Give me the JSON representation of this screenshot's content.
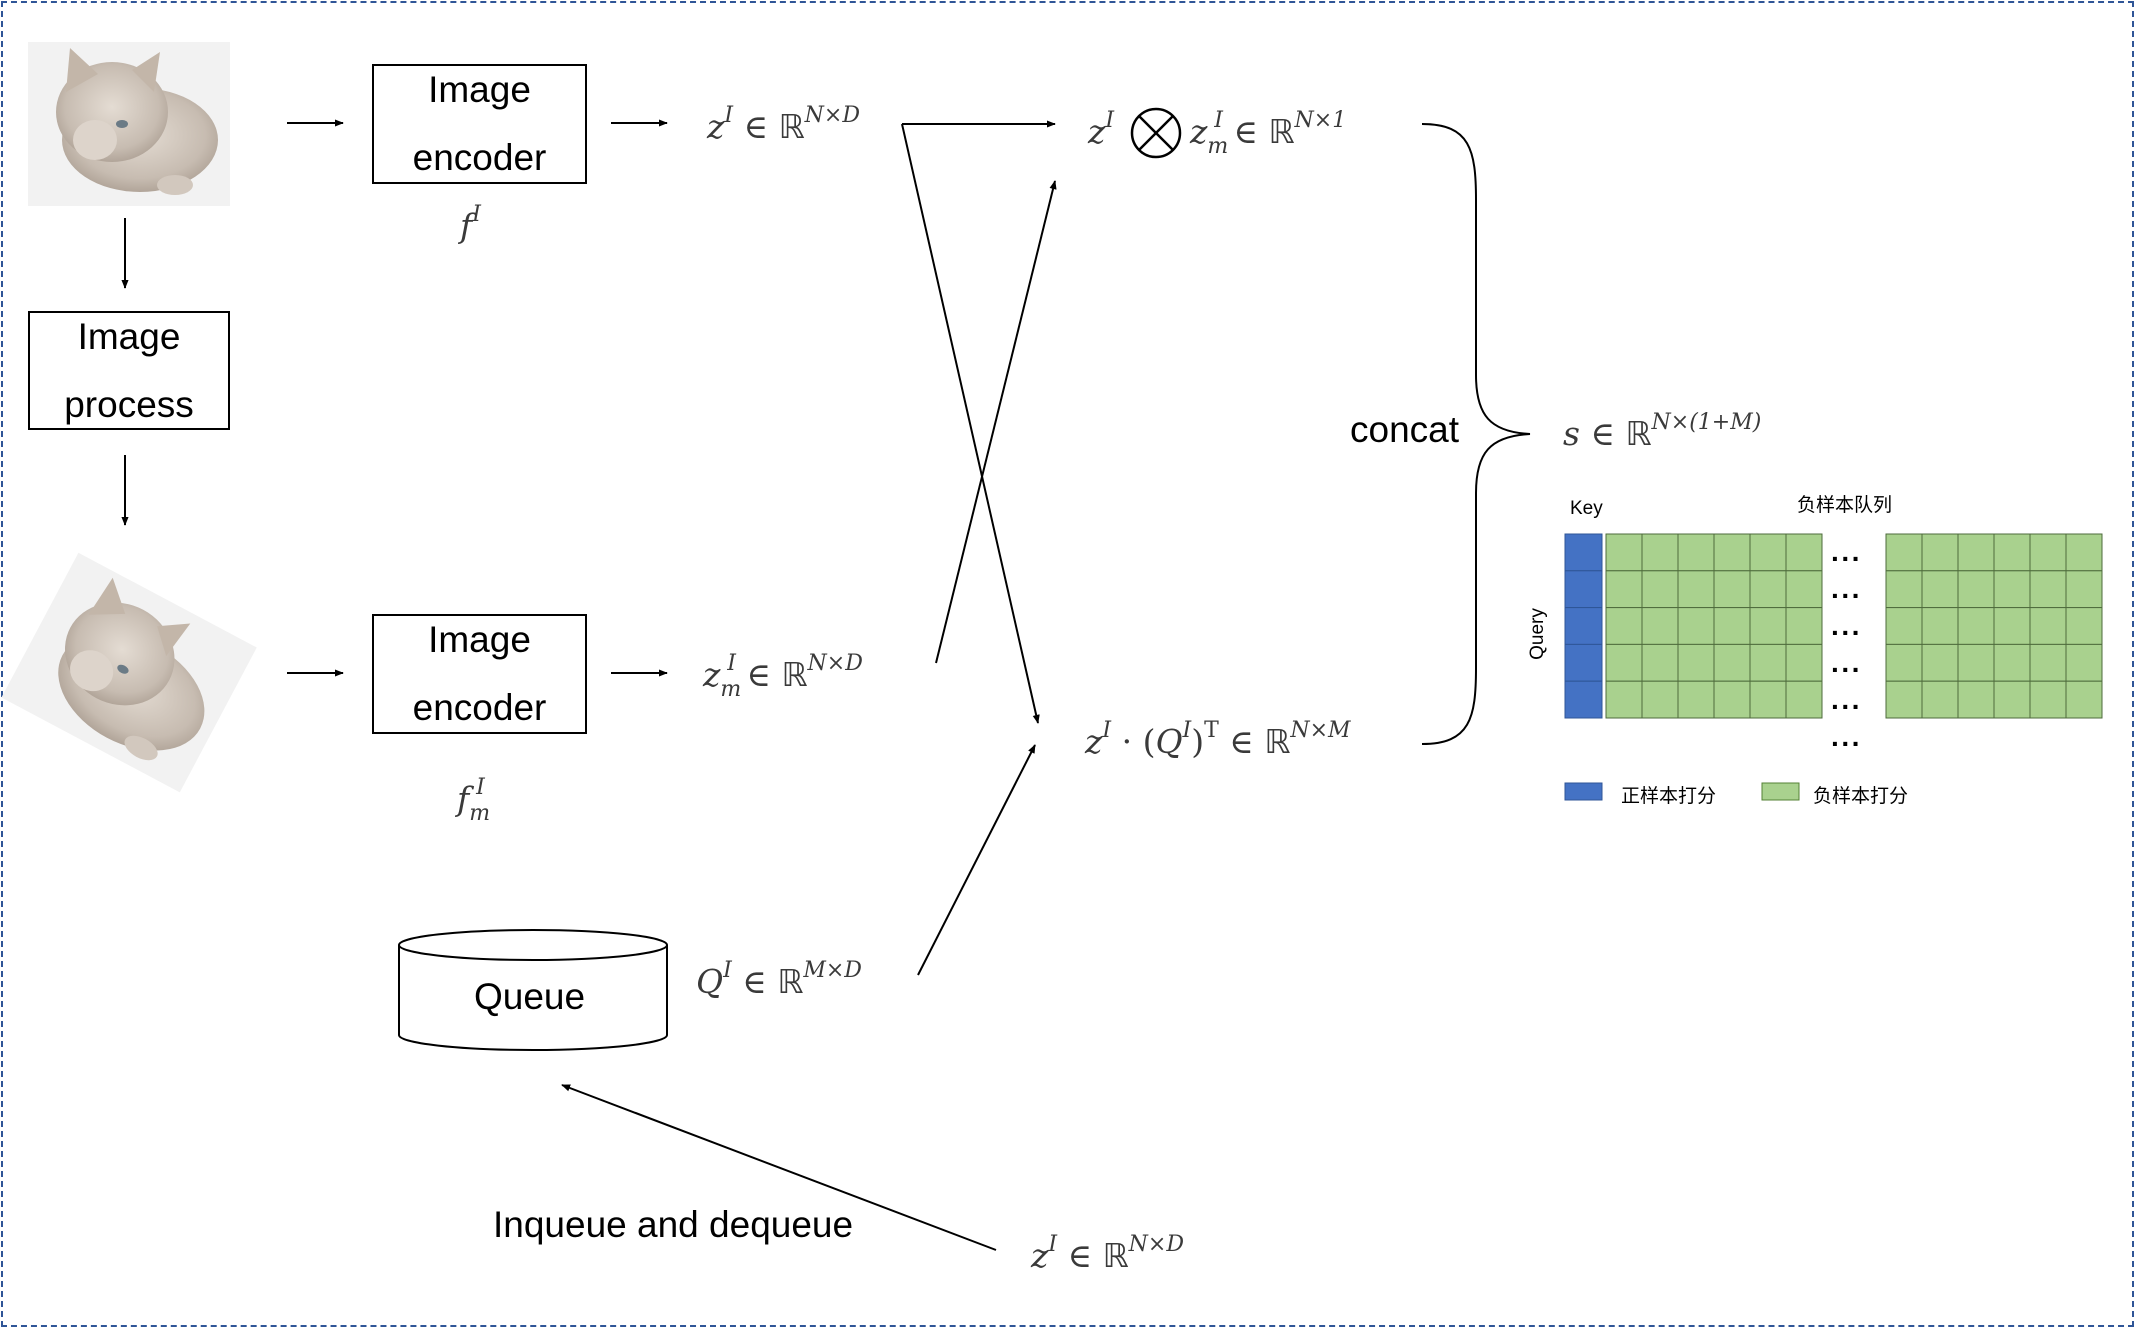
{
  "diagram": {
    "boxes": {
      "encoder_top": [
        "Image",
        "encoder"
      ],
      "image_process": [
        "Image",
        "process"
      ],
      "encoder_bottom": [
        "Image",
        "encoder"
      ],
      "queue": "Queue"
    },
    "labels": {
      "concat": "concat",
      "inqueue": "Inqueue and dequeue"
    },
    "math": {
      "f_I": "f^I",
      "f_m_I": "f_m^I",
      "z_top": "z^I ∈ ℝ^{N×D}",
      "z_m": "z_m^I ∈ ℝ^{N×D}",
      "Q_I": "Q^I ∈ ℝ^{M×D}",
      "pos_score": "z^I ⊗ z_m^I ∈ ℝ^{N×1}",
      "neg_score": "z^I · (Q^I)^T ∈ ℝ^{N×M}",
      "s": "s ∈ ℝ^{N×(1+M)}",
      "z_bottom": "z^I ∈ ℝ^{N×D}"
    },
    "matrix": {
      "key_label": "Key",
      "queue_label": "负样本队列",
      "query_label": "Query",
      "rows": 5,
      "left_block_cols": 6,
      "right_block_cols": 6,
      "dots": "···",
      "legend": [
        {
          "label": "正样本打分",
          "color": "#4472c4"
        },
        {
          "label": "负样本打分",
          "color": "#a9d18e"
        }
      ]
    },
    "images": [
      "cat-photo",
      "rotated-cat-photo"
    ]
  }
}
